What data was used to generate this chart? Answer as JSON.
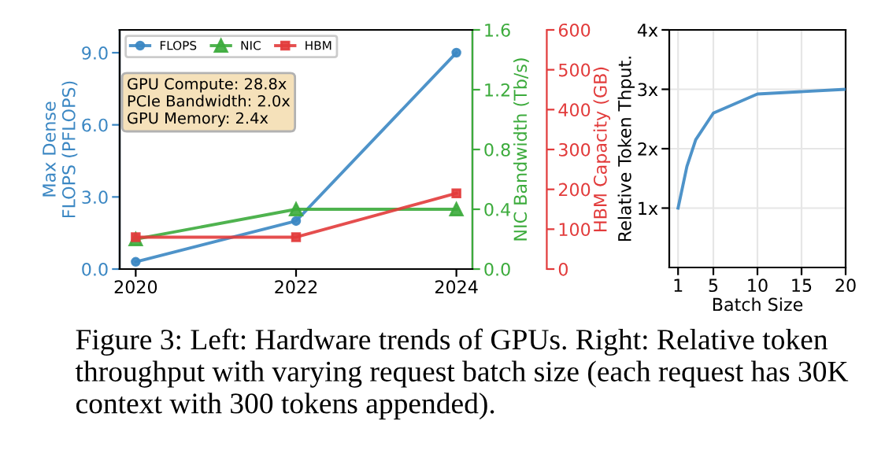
{
  "chart_data": [
    {
      "type": "line",
      "x": [
        2020,
        2022,
        2024
      ],
      "xlim": [
        2019.8,
        2024.2
      ],
      "xticks": [
        2020,
        2022,
        2024
      ],
      "ylabel": "Max Dense\nFLOPS (PFLOPS)",
      "y2label": "NIC Bandwidth (Tb/s)",
      "y3label": "HBM Capacity (GB)",
      "ylim": [
        0,
        9.95
      ],
      "yticks": [
        {
          "value": 0,
          "label": "0.0"
        },
        {
          "value": 3,
          "label": "3.0"
        },
        {
          "value": 6,
          "label": "6.0"
        },
        {
          "value": 9,
          "label": "9.0"
        }
      ],
      "y2lim": [
        0,
        1.6
      ],
      "y2ticks": [
        {
          "value": 0,
          "label": "0.0"
        },
        {
          "value": 0.4,
          "label": "0.4"
        },
        {
          "value": 0.8,
          "label": "0.8"
        },
        {
          "value": 1.2,
          "label": "1.2"
        },
        {
          "value": 1.6,
          "label": "1.6"
        }
      ],
      "y3lim": [
        0,
        600
      ],
      "y3ticks": [
        0,
        100,
        200,
        300,
        400,
        500,
        600
      ],
      "series": [
        {
          "name": "FLOPS",
          "color": "#3b87c3",
          "values": [
            0.3,
            2.0,
            9.0
          ],
          "marker": "circle"
        },
        {
          "name": "NIC",
          "color": "#3cab3c",
          "values": [
            0.2,
            0.4,
            0.4
          ],
          "axis": "y2",
          "marker": "triangle"
        },
        {
          "name": "HBM",
          "color": "#e23b3b",
          "values": [
            80,
            80,
            190
          ],
          "axis": "y3",
          "marker": "square"
        }
      ],
      "legend": "top left",
      "grid": false,
      "annotations": [
        "GPU Compute: 28.8x\nPCIe Bandwidth: 2.0x\nGPU Memory: 2.4x",
        "Figure 3: Left: Hardware trends of GPUs. Right: Relative token throughput with varying request batch size (each request has 30K context with 300 tokens appended)."
      ]
    },
    {
      "type": "line",
      "x": [
        1,
        2,
        3,
        5,
        10,
        20
      ],
      "xlim": [
        0,
        20
      ],
      "xticks": [
        1,
        5,
        10,
        15,
        20
      ],
      "xlabel": "Batch Size",
      "ylabel": "Relative Token Thput.",
      "ylim": [
        0,
        4
      ],
      "yticks": [
        {
          "value": 1,
          "label": "1x"
        },
        {
          "value": 2,
          "label": "2x"
        },
        {
          "value": 3,
          "label": "3x"
        },
        {
          "value": 4,
          "label": "4x"
        }
      ],
      "series": [
        {
          "color": "#3b87c3",
          "values": [
            1.0,
            1.7,
            2.15,
            2.6,
            2.92,
            3.0
          ]
        }
      ],
      "grid": true
    }
  ]
}
